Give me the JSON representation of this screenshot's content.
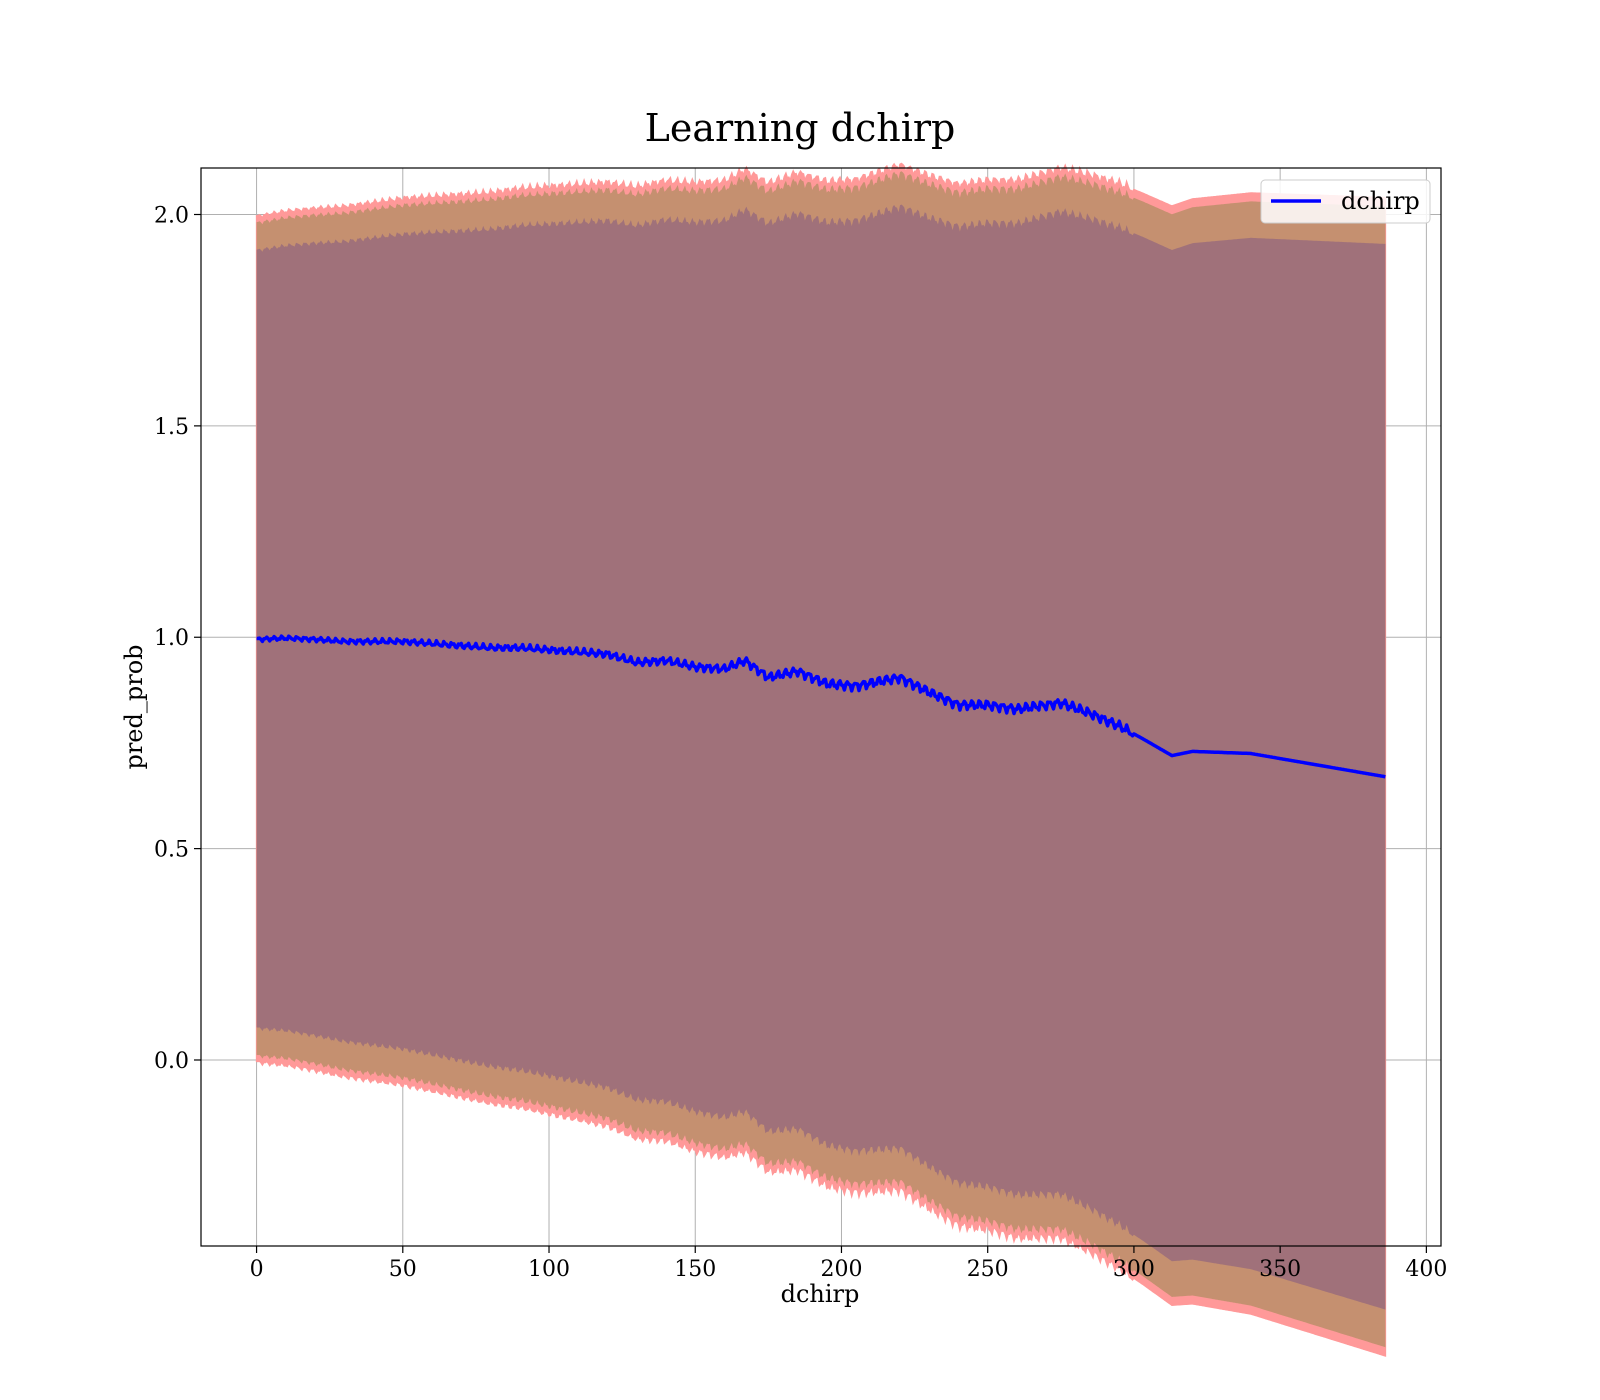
{
  "chart_data": {
    "type": "line",
    "title": "Learning dchirp",
    "xlabel": "dchirp",
    "ylabel": "pred_prob",
    "xlim": [
      -19,
      405
    ],
    "ylim": [
      -0.44,
      2.11
    ],
    "x_ticks": [
      0,
      50,
      100,
      150,
      200,
      250,
      300,
      350,
      400
    ],
    "y_ticks": [
      0.0,
      0.5,
      1.0,
      1.5,
      2.0
    ],
    "x_tick_labels": [
      "0",
      "50",
      "100",
      "150",
      "200",
      "250",
      "300",
      "350",
      "400"
    ],
    "y_tick_labels": [
      "0.0",
      "0.5",
      "1.0",
      "1.5",
      "2.0"
    ],
    "grid": true,
    "legend": {
      "position": "top-right",
      "entries": [
        "dchirp"
      ]
    },
    "colors": {
      "line": "#0000ff",
      "band_outer": "#ff9999",
      "band_middle": "#c59070",
      "band_inner": "#a0717a"
    },
    "series": [
      {
        "name": "dchirp",
        "x": [
          0,
          10,
          20,
          30,
          40,
          50,
          60,
          70,
          80,
          90,
          100,
          110,
          120,
          130,
          140,
          150,
          160,
          167,
          175,
          185,
          195,
          205,
          220,
          230,
          240,
          250,
          260,
          275,
          285,
          295,
          303,
          313,
          320,
          340,
          386
        ],
        "y": [
          0.995,
          0.998,
          0.995,
          0.99,
          0.99,
          0.99,
          0.985,
          0.98,
          0.975,
          0.975,
          0.97,
          0.965,
          0.96,
          0.94,
          0.945,
          0.93,
          0.925,
          0.945,
          0.905,
          0.92,
          0.89,
          0.885,
          0.905,
          0.87,
          0.84,
          0.84,
          0.83,
          0.845,
          0.82,
          0.79,
          0.76,
          0.72,
          0.73,
          0.725,
          0.67
        ]
      }
    ]
  }
}
